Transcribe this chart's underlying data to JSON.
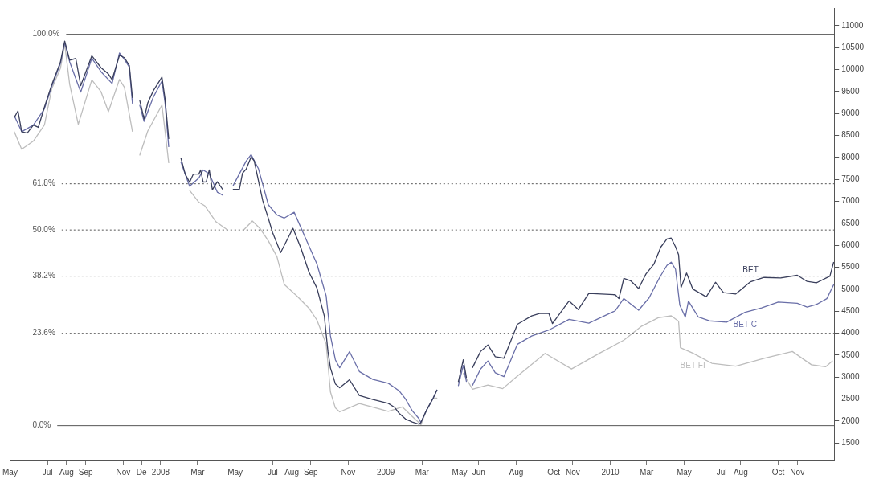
{
  "chart_data": {
    "type": "line",
    "xlim": [
      "2007-05-01",
      "2010-12-31"
    ],
    "ylim": [
      1100,
      11400
    ],
    "xticks": [
      {
        "value": "2007-05-01",
        "label": "May"
      },
      {
        "value": "2007-07-01",
        "label": "Jul"
      },
      {
        "value": "2007-08-01",
        "label": "Aug"
      },
      {
        "value": "2007-09-01",
        "label": "Sep"
      },
      {
        "value": "2007-11-01",
        "label": "Nov"
      },
      {
        "value": "2007-12-01",
        "label": "De"
      },
      {
        "value": "2008-01-01",
        "label": "2008"
      },
      {
        "value": "2008-03-01",
        "label": "Mar"
      },
      {
        "value": "2008-05-01",
        "label": "May"
      },
      {
        "value": "2008-07-01",
        "label": "Jul"
      },
      {
        "value": "2008-08-01",
        "label": "Aug"
      },
      {
        "value": "2008-09-01",
        "label": "Sep"
      },
      {
        "value": "2008-11-01",
        "label": "Nov"
      },
      {
        "value": "2009-01-01",
        "label": "2009"
      },
      {
        "value": "2009-03-01",
        "label": "Mar"
      },
      {
        "value": "2009-05-01",
        "label": "May"
      },
      {
        "value": "2009-06-01",
        "label": "Jun"
      },
      {
        "value": "2009-08-01",
        "label": "Aug"
      },
      {
        "value": "2009-10-01",
        "label": "Oct"
      },
      {
        "value": "2009-11-01",
        "label": "Nov"
      },
      {
        "value": "2010-01-01",
        "label": "2010"
      },
      {
        "value": "2010-03-01",
        "label": "Mar"
      },
      {
        "value": "2010-05-01",
        "label": "May"
      },
      {
        "value": "2010-07-01",
        "label": "Jul"
      },
      {
        "value": "2010-08-01",
        "label": "Aug"
      },
      {
        "value": "2010-10-01",
        "label": "Oct"
      },
      {
        "value": "2010-11-01",
        "label": "Nov"
      }
    ],
    "yticks": [
      1500,
      2000,
      2500,
      3000,
      3500,
      4000,
      4500,
      5000,
      5500,
      6000,
      6500,
      7000,
      7500,
      8000,
      8500,
      9000,
      9500,
      10000,
      10500,
      11000
    ],
    "grid": false,
    "legend": false,
    "y2lim": [
      -8.9,
      106.7
    ],
    "ref_lines": [
      {
        "axis": "y2",
        "value": 100,
        "label": "100.0%",
        "color": "#555555",
        "line_style": "solid"
      },
      {
        "axis": "y2",
        "value": 61.8,
        "label": "61.8%",
        "color": "#555555",
        "line_style": "dotted"
      },
      {
        "axis": "y2",
        "value": 50,
        "label": "50.0%",
        "color": "#555555",
        "line_style": "dotted"
      },
      {
        "axis": "y2",
        "value": 38.2,
        "label": "38.2%",
        "color": "#555555",
        "line_style": "dotted"
      },
      {
        "axis": "y2",
        "value": 23.6,
        "label": "23.6%",
        "color": "#555555",
        "line_style": "dotted"
      },
      {
        "axis": "y2",
        "value": 0,
        "label": "0.0%",
        "color": "#555555",
        "line_style": "solid"
      }
    ],
    "series": [
      {
        "name": "BET",
        "color": "#3a3f5c",
        "x": [
          "2007-05-08",
          "2007-05-14",
          "2007-05-20",
          "2007-05-29",
          "2007-06-08",
          "2007-06-16",
          "2007-06-26",
          "2007-07-08",
          "2007-07-22",
          "2007-07-29",
          "2007-08-06",
          "2007-08-16",
          "2007-08-24",
          "2007-09-11",
          "2007-09-26",
          "2007-10-08",
          "2007-10-14",
          "2007-10-26",
          "2007-11-03",
          "2007-11-11",
          "2007-11-16",
          "2007-11-22",
          "2007-11-28",
          "2007-12-05",
          "2007-12-11",
          "2007-12-20",
          "2008-01-03",
          "2008-01-08",
          "2008-01-14",
          "2008-01-25",
          "2008-02-03",
          "2008-02-10",
          "2008-02-17",
          "2008-02-23",
          "2008-03-03",
          "2008-03-06",
          "2008-03-10",
          "2008-03-15",
          "2008-03-20",
          "2008-03-25",
          "2008-04-02",
          "2008-04-11",
          "2008-04-20",
          "2008-04-28",
          "2008-05-08",
          "2008-05-13",
          "2008-05-19",
          "2008-05-27",
          "2008-06-01",
          "2008-06-08",
          "2008-06-15",
          "2008-06-24",
          "2008-07-01",
          "2008-07-14",
          "2008-08-03",
          "2008-08-16",
          "2008-08-29",
          "2008-09-11",
          "2008-09-23",
          "2008-09-29",
          "2008-10-03",
          "2008-10-11",
          "2008-10-18",
          "2008-11-03",
          "2008-11-19",
          "2008-12-11",
          "2009-01-05",
          "2009-01-15",
          "2009-01-23",
          "2009-02-02",
          "2009-02-13",
          "2009-02-24",
          "2009-02-27",
          "2009-03-08",
          "2009-03-19",
          "2009-03-25",
          "2009-04-10",
          "2009-04-29",
          "2009-05-07",
          "2009-05-12",
          "2009-05-17",
          "2009-05-22",
          "2009-06-04",
          "2009-06-16",
          "2009-06-28",
          "2009-07-12",
          "2009-08-03",
          "2009-08-26",
          "2009-09-09",
          "2009-09-23",
          "2009-09-29",
          "2009-10-26",
          "2009-11-10",
          "2009-11-27",
          "2010-01-09",
          "2010-01-15",
          "2010-01-23",
          "2010-02-03",
          "2010-02-16",
          "2010-02-28",
          "2010-03-13",
          "2010-03-24",
          "2010-04-03",
          "2010-04-10",
          "2010-04-17",
          "2010-04-22",
          "2010-04-26",
          "2010-05-05",
          "2010-05-15",
          "2010-06-06",
          "2010-06-21",
          "2010-07-04",
          "2010-07-24",
          "2010-08-17",
          "2010-09-08",
          "2010-10-05",
          "2010-11-01",
          "2010-11-17",
          "2010-12-02",
          "2010-12-24",
          "2010-12-30"
        ],
        "values": [
          8910,
          9058,
          8586,
          8552,
          8737,
          8684,
          9144,
          9659,
          10172,
          10648,
          10212,
          10252,
          9633,
          10312,
          10042,
          9899,
          9771,
          10323,
          10270,
          10089,
          9361,
          null,
          9293,
          8875,
          9241,
          9518,
          9830,
          9339,
          8429,
          null,
          7978,
          7615,
          7434,
          7618,
          7620,
          7713,
          7439,
          7441,
          7715,
          7262,
          7447,
          7267,
          null,
          7272,
          7275,
          7640,
          7734,
          8011,
          7920,
          7466,
          7011,
          6613,
          6286,
          5833,
          6386,
          5933,
          5389,
          5027,
          4392,
          3571,
          3207,
          2844,
          2755,
          2939,
          2578,
          2490,
          2402,
          2313,
          2170,
          2046,
          1975,
          1924,
          1964,
          2240,
          2517,
          2702,
          null,
          2896,
          3392,
          2992,
          null,
          3215,
          3581,
          3731,
          3461,
          3428,
          4202,
          4390,
          4448,
          4452,
          4216,
          4733,
          4536,
          4903,
          4873,
          4784,
          5244,
          5192,
          5014,
          5346,
          5571,
          5957,
          6143,
          6163,
          5965,
          5784,
          5037,
          5367,
          5004,
          4826,
          5157,
          4923,
          4890,
          5170,
          5267,
          5255,
          5317,
          5176,
          5144,
          5297,
          5609
        ]
      },
      {
        "name": "BET-C",
        "color": "#6a6fa8",
        "x": [
          "2007-05-08",
          "2007-05-20",
          "2007-06-08",
          "2007-06-26",
          "2007-07-08",
          "2007-07-22",
          "2007-07-29",
          "2007-08-06",
          "2007-08-24",
          "2007-09-11",
          "2007-09-26",
          "2007-10-14",
          "2007-10-26",
          "2007-11-03",
          "2007-11-11",
          "2007-11-16",
          "2007-11-22",
          "2007-11-28",
          "2007-12-05",
          "2007-12-20",
          "2008-01-03",
          "2008-01-08",
          "2008-01-14",
          "2008-01-25",
          "2008-02-03",
          "2008-02-17",
          "2008-03-03",
          "2008-03-10",
          "2008-03-20",
          "2008-04-02",
          "2008-04-11",
          "2008-04-20",
          "2008-04-28",
          "2008-05-19",
          "2008-05-27",
          "2008-06-08",
          "2008-06-24",
          "2008-07-08",
          "2008-07-20",
          "2008-08-05",
          "2008-08-22",
          "2008-09-11",
          "2008-09-26",
          "2008-10-03",
          "2008-10-11",
          "2008-10-18",
          "2008-11-03",
          "2008-11-19",
          "2008-12-11",
          "2009-01-05",
          "2009-01-23",
          "2009-02-02",
          "2009-02-13",
          "2009-02-24",
          "2009-02-27",
          "2009-03-08",
          "2009-03-19",
          "2009-03-25",
          "2009-04-10",
          "2009-04-29",
          "2009-05-07",
          "2009-05-12",
          "2009-05-17",
          "2009-05-22",
          "2009-06-04",
          "2009-06-16",
          "2009-06-28",
          "2009-07-12",
          "2009-08-03",
          "2009-08-26",
          "2009-09-23",
          "2009-10-26",
          "2009-11-27",
          "2010-01-09",
          "2010-01-23",
          "2010-02-16",
          "2010-03-05",
          "2010-03-22",
          "2010-04-03",
          "2010-04-10",
          "2010-04-17",
          "2010-04-24",
          "2010-05-03",
          "2010-05-08",
          "2010-05-24",
          "2010-06-11",
          "2010-07-09",
          "2010-08-08",
          "2010-09-04",
          "2010-10-01",
          "2010-11-01",
          "2010-11-17",
          "2010-12-02",
          "2010-12-19",
          "2010-12-30"
        ],
        "values": [
          8947,
          8586,
          8737,
          9107,
          9622,
          10136,
          10611,
          10175,
          9487,
          10257,
          9951,
          9682,
          10378,
          10233,
          10053,
          9233,
          null,
          9183,
          8820,
          9372,
          9739,
          9248,
          8246,
          null,
          7887,
          7343,
          7529,
          7713,
          7626,
          7209,
          7139,
          null,
          7363,
          7917,
          8065,
          7740,
          6923,
          6689,
          6620,
          6751,
          6208,
          5574,
          4848,
          3937,
          3392,
          3211,
          3578,
          3125,
          2946,
          2859,
          2681,
          2502,
          2231,
          2052,
          1964,
          2240,
          2517,
          2702,
          null,
          2805,
          3264,
          2901,
          null,
          2813,
          3180,
          3366,
          3096,
          3008,
          3746,
          3934,
          4069,
          4313,
          4227,
          4508,
          4788,
          4521,
          4800,
          5262,
          5541,
          5615,
          5454,
          4634,
          4362,
          4729,
          4367,
          4279,
          4248,
          4474,
          4572,
          4707,
          4678,
          4592,
          4651,
          4784,
          5098
        ]
      },
      {
        "name": "BET-FI",
        "color": "#bdbdbd",
        "x": [
          "2007-05-08",
          "2007-05-20",
          "2007-06-08",
          "2007-06-26",
          "2007-07-08",
          "2007-07-22",
          "2007-07-29",
          "2007-08-06",
          "2007-08-20",
          "2007-09-11",
          "2007-09-26",
          "2007-10-08",
          "2007-10-26",
          "2007-11-03",
          "2007-11-16",
          "2007-11-22",
          "2007-11-28",
          "2007-12-11",
          "2008-01-03",
          "2008-01-08",
          "2008-01-14",
          "2008-01-25",
          "2008-02-17",
          "2008-03-03",
          "2008-03-13",
          "2008-03-31",
          "2008-04-18",
          "2008-04-23",
          "2008-05-16",
          "2008-05-29",
          "2008-06-11",
          "2008-06-24",
          "2008-07-08",
          "2008-07-20",
          "2008-08-10",
          "2008-08-29",
          "2008-09-11",
          "2008-09-26",
          "2008-10-03",
          "2008-10-11",
          "2008-10-18",
          "2008-11-19",
          "2009-01-05",
          "2009-01-28",
          "2009-02-13",
          "2009-02-24",
          "2009-02-27",
          "2009-03-08",
          "2009-03-19",
          "2009-03-25",
          "2009-04-10",
          "2009-05-07",
          "2009-05-22",
          "2009-06-16",
          "2009-07-10",
          "2009-07-30",
          "2009-09-17",
          "2009-10-30",
          "2009-12-16",
          "2010-01-23",
          "2010-02-21",
          "2010-03-20",
          "2010-04-10",
          "2010-04-22",
          "2010-04-25",
          "2010-05-15",
          "2010-06-15",
          "2010-07-24",
          "2010-09-08",
          "2010-10-24",
          "2010-11-24",
          "2010-12-17",
          "2010-12-28"
        ],
        "values": [
          8582,
          8184,
          8372,
          8742,
          9567,
          10026,
          10575,
          9664,
          8755,
          9764,
          9494,
          9041,
          9775,
          9595,
          8595,
          null,
          8052,
          8602,
          9191,
          8609,
          7881,
          null,
          7251,
          6981,
          6894,
          6533,
          6355,
          null,
          6364,
          6551,
          6372,
          6102,
          5740,
          5105,
          4836,
          4568,
          4297,
          3753,
          2660,
          2297,
          2207,
          2395,
          2220,
          2318,
          2103,
          1961,
          1909,
          2240,
          2517,
          2519,
          null,
          3081,
          2722,
          2819,
          2735,
          2977,
          3538,
          3184,
          3555,
          3839,
          4158,
          4350,
          4393,
          4269,
          3668,
          3544,
          3313,
          3247,
          3424,
          3581,
          3280,
          3233,
          3364
        ]
      }
    ]
  }
}
